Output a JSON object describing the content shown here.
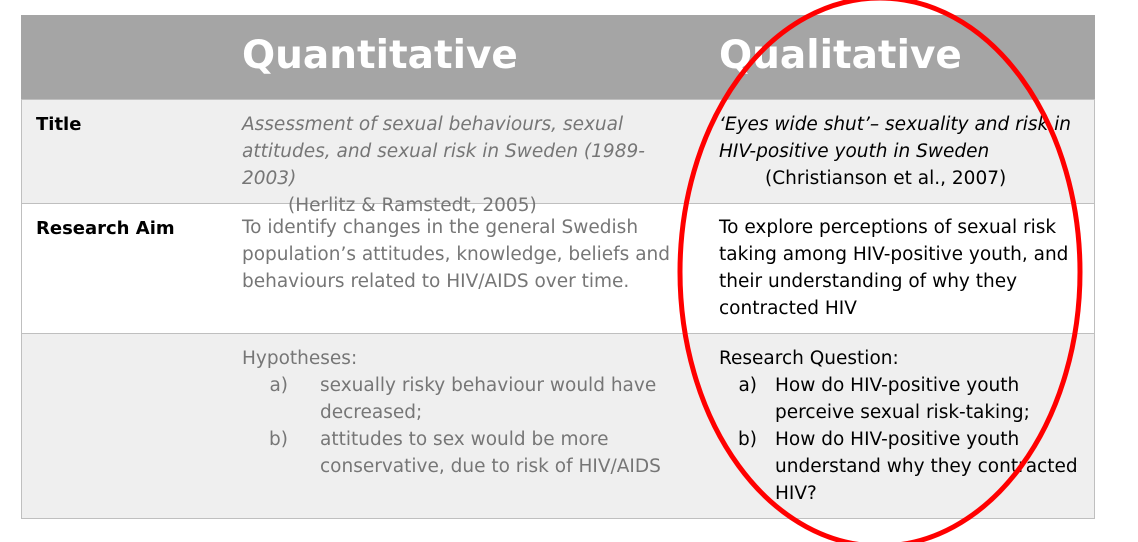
{
  "table": {
    "columns": [
      "Quantitative",
      "Qualitative"
    ],
    "title_row": {
      "label": "Title",
      "quantitative": {
        "title": "Assessment of sexual behaviours, sexual attitudes, and sexual risk in Sweden (1989-2003)",
        "citation": "(Herlitz & Ramstedt, 2005)"
      },
      "qualitative": {
        "title": "‘Eyes wide shut’– sexuality and risk in HIV-positive youth in Sweden",
        "citation": "(Christianson et al., 2007)"
      }
    },
    "aim_row": {
      "label": "Research Aim",
      "quantitative": "To identify changes in the general Swedish population’s attitudes, knowledge, beliefs and behaviours related to HIV/AIDS over time.",
      "qualitative": "To explore perceptions of sexual risk taking among HIV-positive youth, and their understanding of why they contracted HIV"
    },
    "question_row": {
      "quantitative": {
        "heading": "Hypotheses:",
        "items": [
          {
            "marker": "a)",
            "text": "sexually risky behaviour would have decreased;"
          },
          {
            "marker": "b)",
            "text": "attitudes to sex would be more conservative, due to risk of HIV/AIDS"
          }
        ]
      },
      "qualitative": {
        "heading": "Research Question:",
        "items": [
          {
            "marker": "a)",
            "text": "How do HIV-positive youth perceive sexual risk-taking;"
          },
          {
            "marker": "b)",
            "text": "How do HIV-positive youth understand why they contracted HIV?"
          }
        ]
      }
    }
  }
}
